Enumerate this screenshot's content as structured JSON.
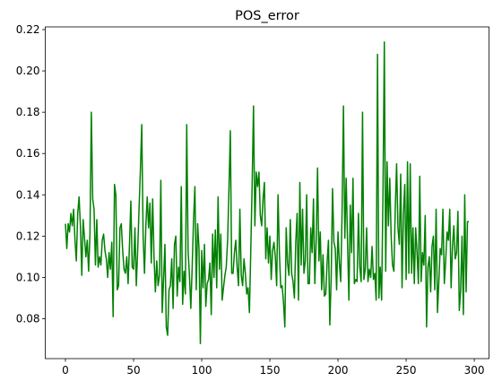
{
  "chart_data": {
    "type": "line",
    "title": "POS_error",
    "series": [
      {
        "color": "#008000",
        "values": [
          0.126,
          0.114,
          0.126,
          0.122,
          0.131,
          0.125,
          0.133,
          0.118,
          0.108,
          0.131,
          0.139,
          0.125,
          0.101,
          0.128,
          0.119,
          0.11,
          0.118,
          0.103,
          0.121,
          0.18,
          0.138,
          0.133,
          0.106,
          0.128,
          0.105,
          0.11,
          0.106,
          0.118,
          0.121,
          0.113,
          0.109,
          0.1,
          0.112,
          0.104,
          0.117,
          0.081,
          0.145,
          0.14,
          0.094,
          0.096,
          0.124,
          0.126,
          0.113,
          0.104,
          0.102,
          0.11,
          0.097,
          0.116,
          0.137,
          0.105,
          0.104,
          0.124,
          0.096,
          0.113,
          0.133,
          0.152,
          0.174,
          0.12,
          0.102,
          0.125,
          0.139,
          0.124,
          0.136,
          0.107,
          0.138,
          0.11,
          0.093,
          0.108,
          0.096,
          0.101,
          0.147,
          0.083,
          0.099,
          0.116,
          0.076,
          0.072,
          0.094,
          0.096,
          0.109,
          0.085,
          0.116,
          0.12,
          0.091,
          0.105,
          0.098,
          0.144,
          0.087,
          0.103,
          0.092,
          0.174,
          0.113,
          0.101,
          0.085,
          0.105,
          0.128,
          0.144,
          0.094,
          0.126,
          0.114,
          0.068,
          0.113,
          0.095,
          0.116,
          0.086,
          0.097,
          0.099,
          0.107,
          0.082,
          0.121,
          0.1,
          0.123,
          0.095,
          0.139,
          0.104,
          0.121,
          0.089,
          0.095,
          0.101,
          0.105,
          0.118,
          0.143,
          0.171,
          0.102,
          0.102,
          0.112,
          0.118,
          0.105,
          0.096,
          0.133,
          0.101,
          0.096,
          0.109,
          0.102,
          0.092,
          0.095,
          0.083,
          0.113,
          0.145,
          0.183,
          0.125,
          0.151,
          0.144,
          0.151,
          0.13,
          0.125,
          0.138,
          0.146,
          0.109,
          0.124,
          0.107,
          0.12,
          0.099,
          0.113,
          0.117,
          0.11,
          0.096,
          0.14,
          0.112,
          0.095,
          0.096,
          0.088,
          0.076,
          0.124,
          0.107,
          0.101,
          0.128,
          0.102,
          0.098,
          0.09,
          0.117,
          0.131,
          0.089,
          0.146,
          0.106,
          0.133,
          0.102,
          0.108,
          0.14,
          0.097,
          0.097,
          0.124,
          0.112,
          0.138,
          0.097,
          0.118,
          0.153,
          0.108,
          0.122,
          0.094,
          0.111,
          0.091,
          0.092,
          0.107,
          0.118,
          0.077,
          0.1,
          0.143,
          0.117,
          0.114,
          0.094,
          0.122,
          0.107,
          0.098,
          0.132,
          0.183,
          0.119,
          0.148,
          0.117,
          0.089,
          0.135,
          0.112,
          0.148,
          0.097,
          0.099,
          0.098,
          0.131,
          0.105,
          0.098,
          0.18,
          0.099,
          0.104,
          0.124,
          0.098,
          0.104,
          0.1,
          0.115,
          0.099,
          0.102,
          0.089,
          0.208,
          0.09,
          0.105,
          0.089,
          0.14,
          0.214,
          0.103,
          0.156,
          0.125,
          0.148,
          0.12,
          0.106,
          0.103,
          0.133,
          0.155,
          0.124,
          0.116,
          0.15,
          0.095,
          0.131,
          0.145,
          0.099,
          0.156,
          0.102,
          0.155,
          0.102,
          0.124,
          0.097,
          0.124,
          0.112,
          0.097,
          0.149,
          0.098,
          0.112,
          0.106,
          0.13,
          0.076,
          0.105,
          0.11,
          0.093,
          0.115,
          0.12,
          0.094,
          0.133,
          0.083,
          0.098,
          0.114,
          0.111,
          0.133,
          0.097,
          0.108,
          0.122,
          0.118,
          0.133,
          0.095,
          0.115,
          0.125,
          0.109,
          0.112,
          0.132,
          0.084,
          0.094,
          0.12,
          0.082,
          0.14,
          0.093,
          0.127,
          0.127
        ]
      }
    ],
    "xlim": [
      -14.8,
      310.8
    ],
    "xticks": [
      0,
      50,
      100,
      150,
      200,
      250,
      300
    ],
    "ylim": [
      0.0607,
      0.2213
    ],
    "yticks": [
      0.08,
      {
        "value": 0.1,
        "label": "0.10"
      },
      0.12,
      0.14,
      0.16,
      0.18,
      {
        "value": 0.2,
        "label": "0.20"
      },
      0.22
    ]
  }
}
